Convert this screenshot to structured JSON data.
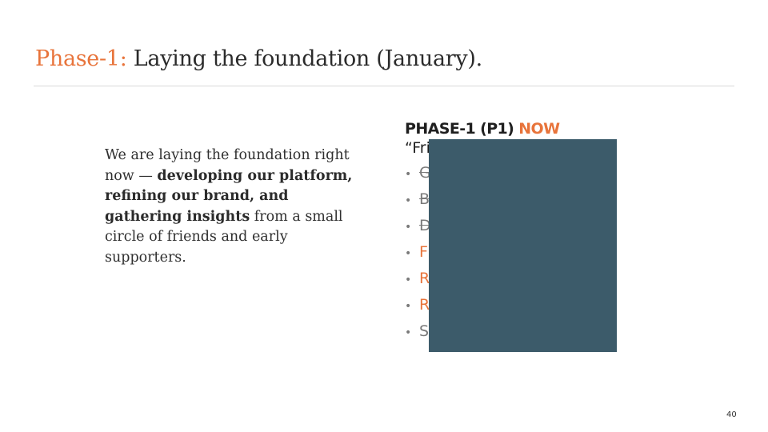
{
  "slide": {
    "title_accent": "Phase-1:",
    "title_rest": " Laying the foundation (January).",
    "page_number": "40"
  },
  "body": {
    "text_intro": "We are laying the foundation right now — ",
    "text_bold": "developing our platform, refining our brand, and gathering insights",
    "text_outro": " from a small circle of friends and early supporters."
  },
  "phase": {
    "heading_prefix": "PHASE-1 (P1) ",
    "heading_now": "NOW",
    "quote": "“Fri",
    "bullet_glyph": "•",
    "items": [
      {
        "text": "G",
        "style": "gray-strike"
      },
      {
        "text": "B",
        "style": "gray-strike"
      },
      {
        "text": "D",
        "style": "gray-strike"
      },
      {
        "text": "F",
        "style": "orange"
      },
      {
        "text": "R",
        "style": "orange"
      },
      {
        "text": "R",
        "style": "orange"
      },
      {
        "text": "S",
        "style": "gray"
      }
    ]
  },
  "colors": {
    "accent": "#e8743b",
    "redaction_box": "#3c5b6a",
    "muted_text": "#7a7a7a"
  }
}
